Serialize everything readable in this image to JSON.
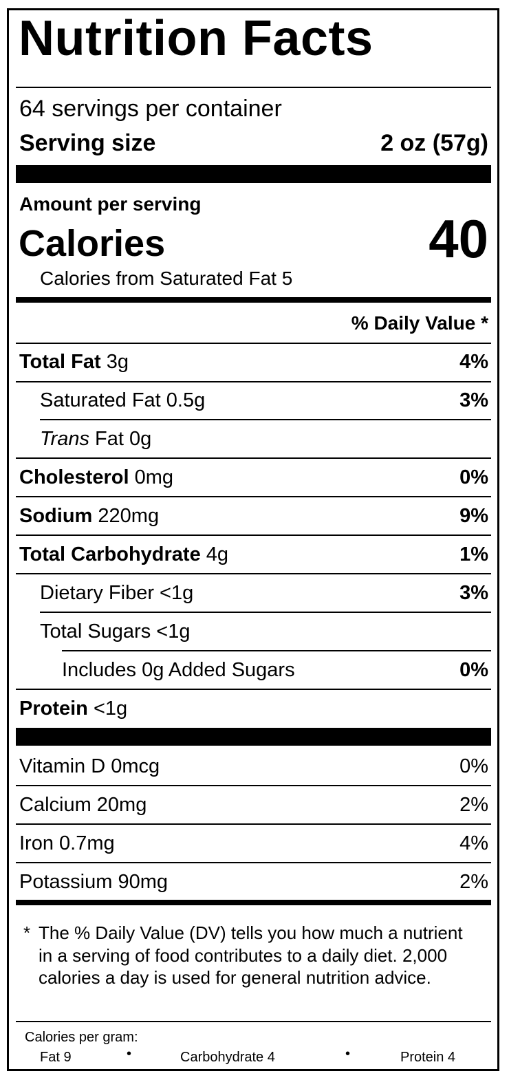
{
  "title": "Nutrition Facts",
  "servings": "64 servings per container",
  "serving_size": {
    "label": "Serving size",
    "value": "2 oz (57g)"
  },
  "amount_per_serving": "Amount per serving",
  "calories": {
    "label": "Calories",
    "value": "40"
  },
  "calories_sat_fat": "Calories from Saturated Fat 5",
  "dv_header": "% Daily Value *",
  "nutrients": [
    {
      "name": "Total Fat",
      "amount": " 3g",
      "dv": "4%"
    },
    {
      "name": "Saturated Fat 0.5g",
      "amount": "",
      "dv": "3%"
    },
    {
      "name": "Trans",
      "amount": " Fat 0g",
      "dv": ""
    },
    {
      "name": "Cholesterol",
      "amount": " 0mg",
      "dv": "0%"
    },
    {
      "name": "Sodium",
      "amount": " 220mg",
      "dv": "9%"
    },
    {
      "name": "Total Carbohydrate",
      "amount": " 4g",
      "dv": "1%"
    },
    {
      "name": "Dietary Fiber <1g",
      "amount": "",
      "dv": "3%"
    },
    {
      "name": "Total Sugars <1g",
      "amount": "",
      "dv": ""
    },
    {
      "name": "Includes 0g Added Sugars",
      "amount": "",
      "dv": "0%"
    },
    {
      "name": "Protein",
      "amount": " <1g",
      "dv": ""
    }
  ],
  "vitamins": [
    {
      "name": "Vitamin D 0mcg",
      "dv": "0%"
    },
    {
      "name": "Calcium 20mg",
      "dv": "2%"
    },
    {
      "name": "Iron 0.7mg",
      "dv": "4%"
    },
    {
      "name": "Potassium 90mg",
      "dv": "2%"
    }
  ],
  "footnote": {
    "star": "*",
    "text": "The % Daily Value (DV) tells you how much a nutrient in a serving of food contributes to a daily diet. 2,000 calories a day is used for general nutrition advice."
  },
  "calories_per_gram": {
    "label": "Calories per gram:",
    "fat": "Fat 9",
    "carbohydrate": "Carbohydrate 4",
    "protein": "Protein 4",
    "separator": "•"
  }
}
